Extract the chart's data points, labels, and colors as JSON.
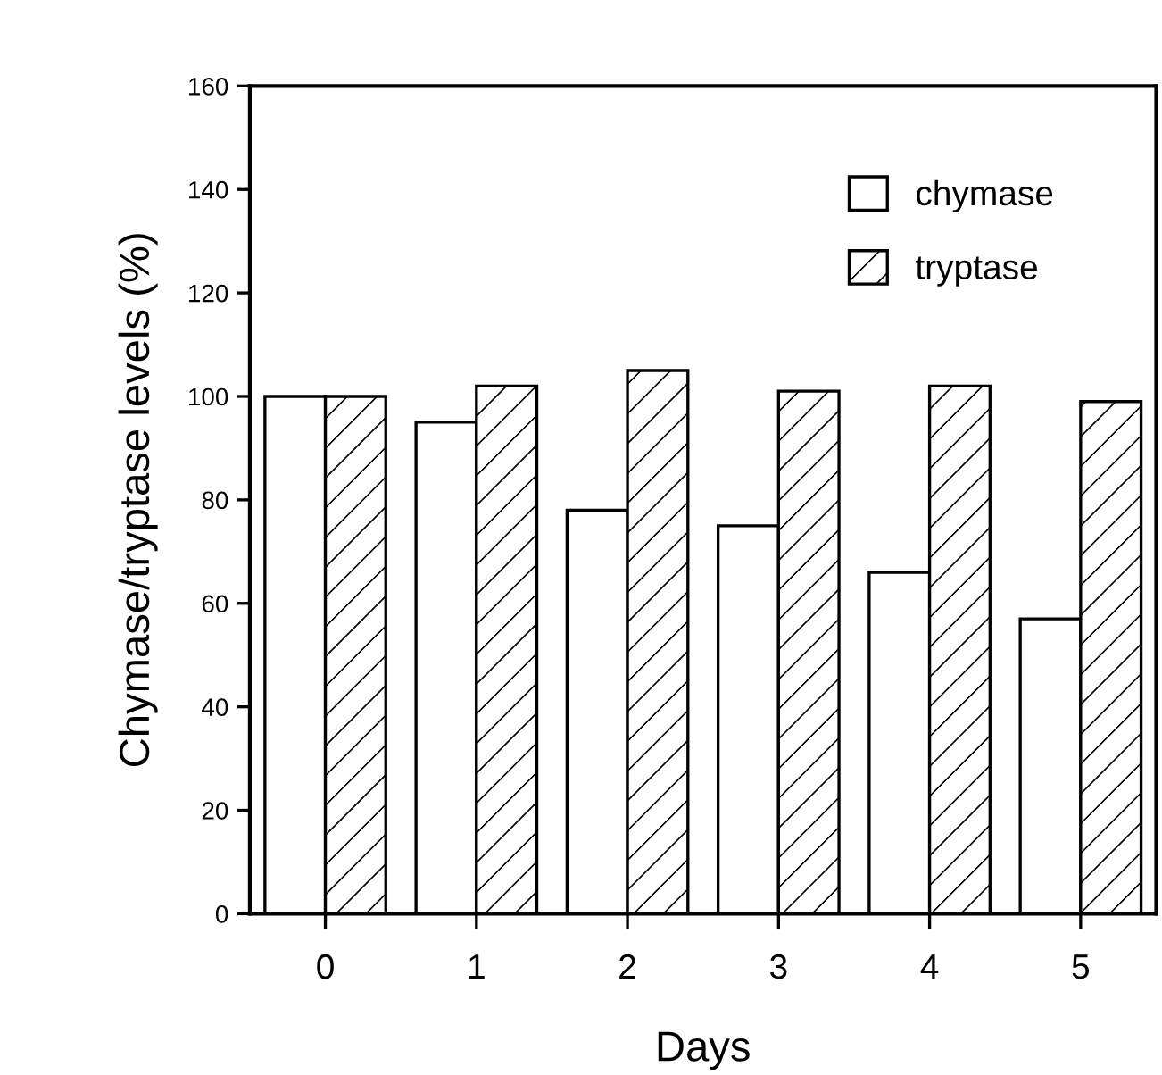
{
  "chart_data": {
    "type": "bar",
    "xlabel": "Days",
    "ylabel": "Chymase/tryptase levels (%)",
    "categories": [
      "0",
      "1",
      "2",
      "3",
      "4",
      "5"
    ],
    "series": [
      {
        "name": "chymase",
        "color": "#ffffff",
        "values": [
          100,
          95,
          78,
          75,
          66,
          57
        ]
      },
      {
        "name": "tryptase",
        "color": "#000000",
        "values": [
          100,
          102,
          105,
          101,
          102,
          99
        ]
      }
    ],
    "ylim": [
      0,
      160
    ],
    "yticks": [
      0,
      20,
      40,
      60,
      80,
      100,
      120,
      140,
      160
    ],
    "grid": false,
    "legend": "top right"
  }
}
